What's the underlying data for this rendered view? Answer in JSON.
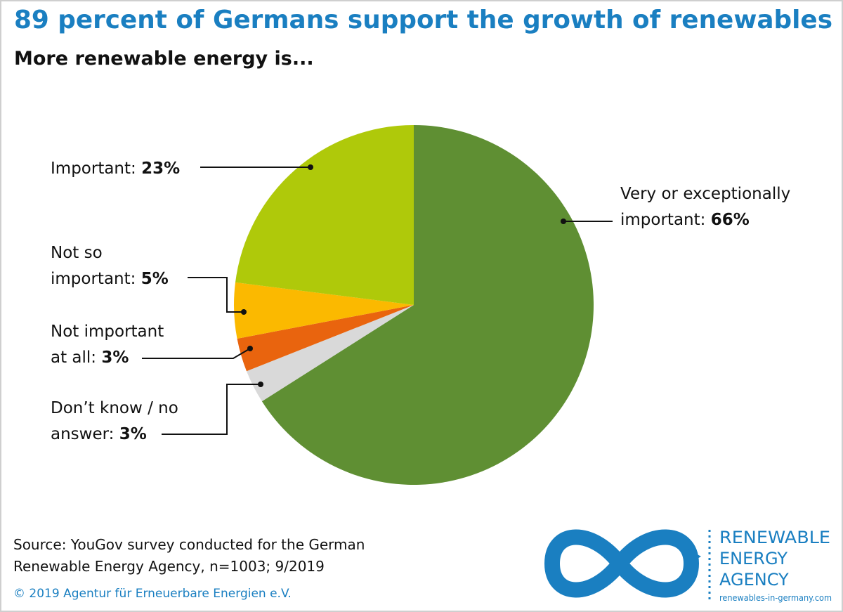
{
  "chart_data": {
    "type": "pie",
    "title": "89 percent of Germans support the growth of renewables",
    "subtitle": "More renewable energy is...",
    "categories": [
      "Very or exceptionally\nimportant:",
      "Don’t know / no\nanswer:",
      "Not important\nat all:",
      "Not so\nimportant:",
      "Important:"
    ],
    "values": [
      66,
      3,
      3,
      5,
      23
    ],
    "value_labels": [
      "66%",
      "3%",
      "3%",
      "5%",
      "23%"
    ],
    "colors": [
      "#5f8f33",
      "#d9d9d9",
      "#e9640e",
      "#fbb900",
      "#afc90a"
    ],
    "source": "Source: YouGov survey conducted for the German\nRenewable Energy Agency, n=1003; 9/2019",
    "copyright": "© 2019 Agentur für Erneuerbare Energien e.V.",
    "logo": {
      "name": [
        "RENEWABLE",
        "ENERGY",
        "AGENCY"
      ],
      "url": "renewables-in-germany.com"
    }
  }
}
